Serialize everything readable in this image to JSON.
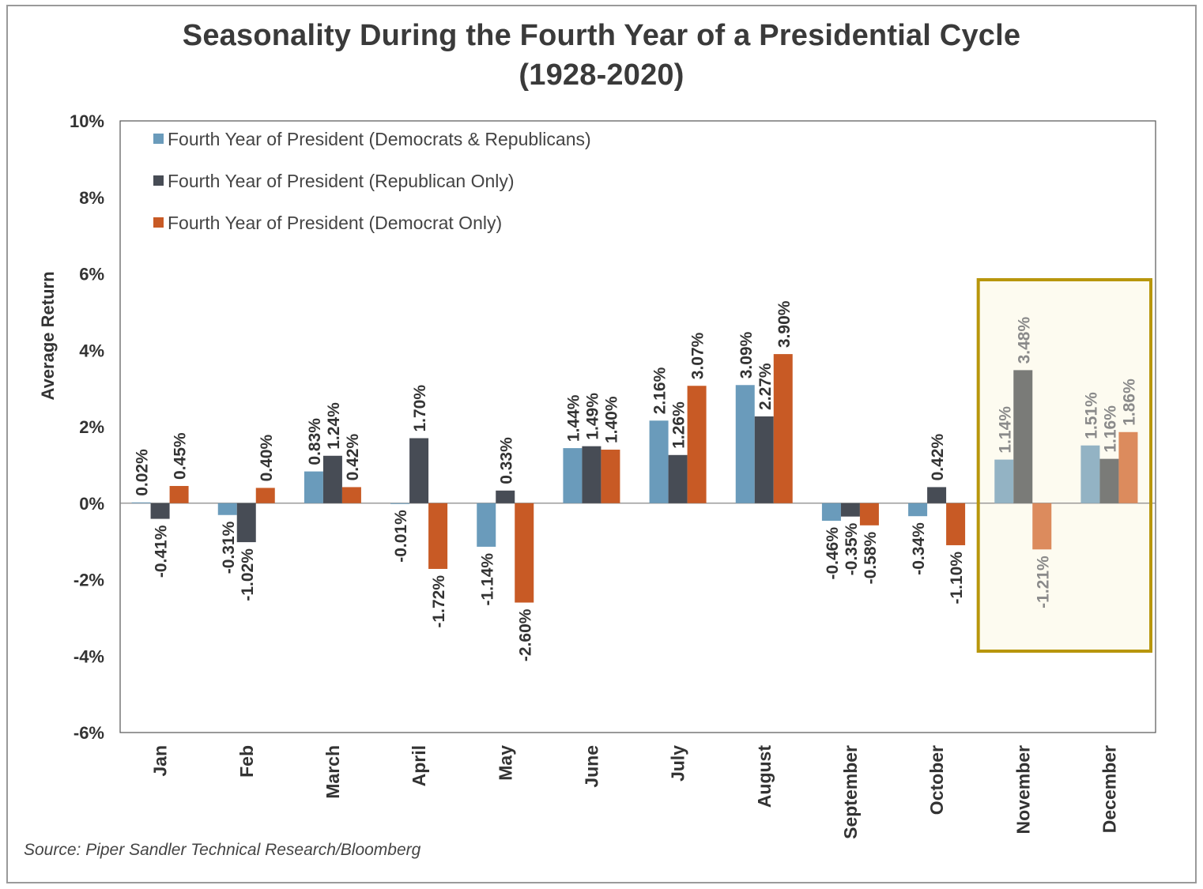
{
  "title_line1": "Seasonality During the Fourth Year of a Presidential Cycle",
  "title_line2": "(1928-2020)",
  "source": "Source: Piper Sandler Technical Research/Bloomberg",
  "chart_data": {
    "type": "bar",
    "ylabel": "Average Return",
    "ylim": [
      -6,
      10
    ],
    "yticks": [
      10,
      8,
      6,
      4,
      2,
      0,
      -2,
      -4,
      -6
    ],
    "ytick_labels": [
      "10%",
      "8%",
      "6%",
      "4%",
      "2%",
      "0%",
      "-2%",
      "-4%",
      "-6%"
    ],
    "categories": [
      "Jan",
      "Feb",
      "March",
      "April",
      "May",
      "June",
      "July",
      "August",
      "September",
      "October",
      "November",
      "December"
    ],
    "legend_position": "top-left",
    "grid": false,
    "highlight": {
      "categories": [
        "November",
        "December"
      ],
      "border_color": "#b8960c",
      "fill_color": "#fdfbf0"
    },
    "series": [
      {
        "name": "Fourth Year of President (Democrats & Republicans)",
        "color": "#6a9bbb",
        "highlight_color": "#93b3c4",
        "values": [
          0.02,
          -0.31,
          0.83,
          -0.01,
          -1.14,
          1.44,
          2.16,
          3.09,
          -0.46,
          -0.34,
          1.14,
          1.51
        ],
        "labels": [
          "0.02%",
          "-0.31%",
          "0.83%",
          "-0.01%",
          "-1.14%",
          "1.44%",
          "2.16%",
          "3.09%",
          "-0.46%",
          "-0.34%",
          "1.14%",
          "1.51%"
        ]
      },
      {
        "name": "Fourth Year of President (Republican Only)",
        "color": "#474c55",
        "highlight_color": "#7a7b78",
        "values": [
          -0.41,
          -1.02,
          1.24,
          1.7,
          0.33,
          1.49,
          1.26,
          2.27,
          -0.35,
          0.42,
          3.48,
          1.16
        ],
        "labels": [
          "-0.41%",
          "-1.02%",
          "1.24%",
          "1.70%",
          "0.33%",
          "1.49%",
          "1.26%",
          "2.27%",
          "-0.35%",
          "0.42%",
          "3.48%",
          "1.16%"
        ]
      },
      {
        "name": "Fourth Year of President (Democrat Only)",
        "color": "#c85a25",
        "highlight_color": "#dc8b5d",
        "values": [
          0.45,
          0.4,
          0.42,
          -1.72,
          -2.6,
          1.4,
          3.07,
          3.9,
          -0.58,
          -1.1,
          -1.21,
          1.86
        ],
        "labels": [
          "0.45%",
          "0.40%",
          "0.42%",
          "-1.72%",
          "-2.60%",
          "1.40%",
          "3.07%",
          "3.90%",
          "-0.58%",
          "-1.10%",
          "-1.21%",
          "1.86%"
        ]
      }
    ]
  }
}
